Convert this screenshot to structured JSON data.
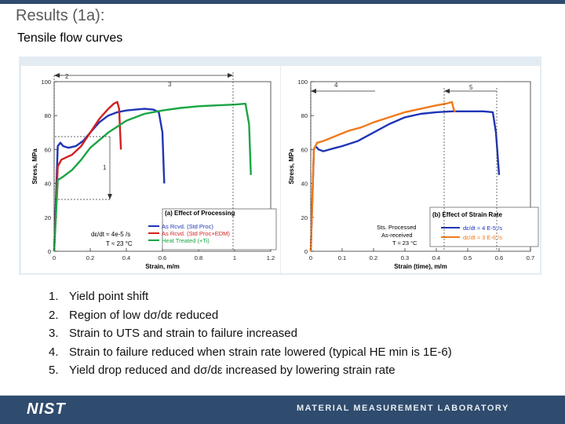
{
  "slide": {
    "title": "Results (1a):",
    "subtitle": "Tensile flow curves",
    "notes": [
      {
        "num": "1.",
        "text": "Yield point shift"
      },
      {
        "num": "2.",
        "text": "Region of low dσ/dε reduced"
      },
      {
        "num": "3.",
        "text": "Strain to UTS and strain to failure increased"
      },
      {
        "num": "4.",
        "text": "Strain to failure reduced when strain rate lowered (typical HE min is 1E-6)"
      },
      {
        "num": "5.",
        "text": "Yield drop reduced and dσ/dε increased by lowering strain rate"
      }
    ],
    "footer_logo": "NIST",
    "footer_lab": "MATERIAL MEASUREMENT LABORATORY"
  },
  "colors": {
    "header_bar": "#2f4b6e",
    "footer": "#2f4b6e",
    "blue": "#1f35b5",
    "red": "#d32020",
    "green": "#1aa544",
    "orange": "#f07a1a"
  },
  "chart_data": [
    {
      "type": "line",
      "panel_title": "(a) Effect of Processing",
      "xlabel": "Strain, m/m",
      "ylabel": "Stress, MPa",
      "xlim": [
        0,
        1.2
      ],
      "ylim": [
        0,
        100
      ],
      "xticks": [
        0,
        0.2,
        0.4,
        0.6,
        0.8,
        1,
        1.2
      ],
      "xtick_labels": [
        "0",
        "0.2",
        "0.4",
        "0.6",
        "0.8",
        "1",
        "1.2"
      ],
      "yticks": [
        0,
        20,
        40,
        60,
        80,
        100
      ],
      "ytick_labels": [
        "0",
        "20",
        "40",
        "60",
        "80",
        "100"
      ],
      "condition_label": "dε/dt ≈ 4e-5 /s",
      "temperature_label": "T ≈ 23 °C",
      "series": [
        {
          "name": "As Rcvd. (Std Proc)",
          "color": "blue",
          "x": [
            0,
            0.02,
            0.035,
            0.05,
            0.08,
            0.12,
            0.16,
            0.2,
            0.25,
            0.3,
            0.35,
            0.4,
            0.45,
            0.5,
            0.55,
            0.58,
            0.6,
            0.61
          ],
          "y": [
            0,
            62,
            64,
            62,
            61,
            62,
            65,
            70,
            76,
            80,
            82,
            83,
            83.5,
            84,
            83.5,
            82,
            70,
            40
          ]
        },
        {
          "name": "As Rcvd. (Std Proc+EDM)",
          "color": "red",
          "x": [
            0,
            0.02,
            0.04,
            0.06,
            0.1,
            0.15,
            0.2,
            0.25,
            0.3,
            0.33,
            0.35,
            0.36,
            0.37
          ],
          "y": [
            0,
            50,
            54,
            55,
            57,
            62,
            70,
            78,
            84,
            87,
            88,
            84,
            60
          ]
        },
        {
          "name": "Heat Treated (+Ti)",
          "color": "green",
          "x": [
            0,
            0.02,
            0.05,
            0.1,
            0.15,
            0.2,
            0.3,
            0.4,
            0.5,
            0.6,
            0.7,
            0.8,
            0.9,
            1.0,
            1.06,
            1.08,
            1.09
          ],
          "y": [
            0,
            42,
            44,
            48,
            54,
            61,
            70,
            77,
            81,
            83,
            84.5,
            85.5,
            86,
            86.5,
            87,
            75,
            45
          ]
        }
      ],
      "annotations": [
        "1",
        "2",
        "3"
      ]
    },
    {
      "type": "line",
      "panel_title": "(b) Effect of Strain Rate",
      "xlabel": "Strain (time), m/m",
      "ylabel": "Stress, MPa",
      "xlim": [
        0,
        0.7
      ],
      "ylim": [
        0,
        100
      ],
      "xticks": [
        0,
        0.1,
        0.2,
        0.3,
        0.4,
        0.5,
        0.6,
        0.7
      ],
      "xtick_labels": [
        "0",
        "0.1",
        "0.2",
        "0.3",
        "0.4",
        "0.5",
        "0.6",
        "0.7"
      ],
      "yticks": [
        0,
        20,
        40,
        60,
        80,
        100
      ],
      "ytick_labels": [
        "0",
        "20",
        "40",
        "60",
        "80",
        "100"
      ],
      "legend_labels": [
        "Sts. Processed",
        "As-received"
      ],
      "temperature_label": "T ≈ 23 °C",
      "series": [
        {
          "name": "dε/dt ≈ 4 E-5 /s",
          "color": "blue",
          "x": [
            0,
            0.01,
            0.015,
            0.025,
            0.04,
            0.06,
            0.08,
            0.1,
            0.15,
            0.2,
            0.25,
            0.3,
            0.35,
            0.4,
            0.45,
            0.5,
            0.55,
            0.58,
            0.59,
            0.6
          ],
          "y": [
            0,
            60,
            62,
            60,
            59,
            60,
            61,
            62,
            65,
            70,
            75,
            79,
            81,
            82,
            82.5,
            82.5,
            82.5,
            82,
            70,
            45
          ]
        },
        {
          "name": "dε/dt ≈ 3 E-6 /s",
          "color": "orange",
          "x": [
            0,
            0.01,
            0.02,
            0.04,
            0.08,
            0.12,
            0.16,
            0.2,
            0.25,
            0.3,
            0.35,
            0.4,
            0.43,
            0.45,
            0.455,
            0.46
          ],
          "y": [
            0,
            60,
            64,
            65,
            68,
            71,
            73,
            76,
            79,
            82,
            84,
            86,
            87,
            88,
            84,
            82
          ]
        }
      ],
      "annotations": [
        "4",
        "5"
      ]
    }
  ]
}
